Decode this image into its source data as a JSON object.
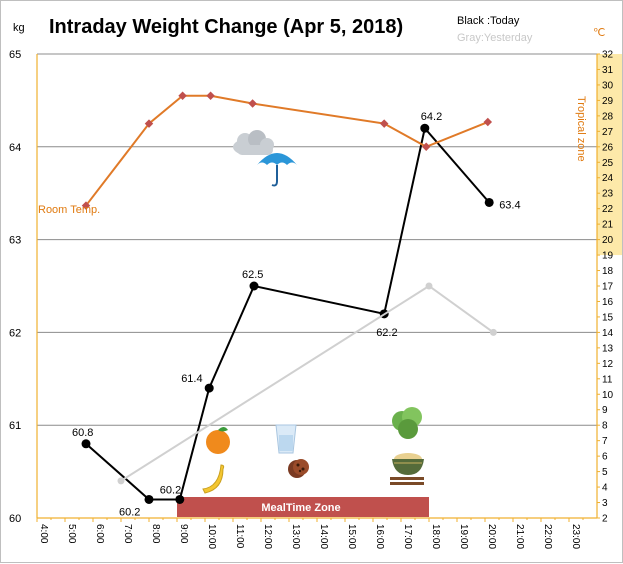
{
  "chart_data": {
    "type": "line",
    "title": "Intraday Weight Change (Apr 5, 2018)",
    "legend": {
      "today": "Black :Today",
      "yesterday": "Gray:Yesterday",
      "placement": "top-right"
    },
    "y_unit": "kg",
    "y2_unit": "℃",
    "ylim": [
      60,
      65
    ],
    "y_ticks": [
      "60",
      "61",
      "62",
      "63",
      "64",
      "65"
    ],
    "y2lim": [
      2,
      32
    ],
    "y2_ticks": [
      "2",
      "3",
      "4",
      "5",
      "6",
      "7",
      "8",
      "9",
      "10",
      "11",
      "12",
      "13",
      "14",
      "15",
      "16",
      "17",
      "18",
      "19",
      "20",
      "21",
      "22",
      "23",
      "24",
      "25",
      "26",
      "27",
      "28",
      "29",
      "30",
      "31",
      "32"
    ],
    "x_ticks": [
      "4:00",
      "5:00",
      "6:00",
      "7:00",
      "8:00",
      "9:00",
      "10:00",
      "11:00",
      "12:00",
      "13:00",
      "14:00",
      "15:00",
      "16:00",
      "17:00",
      "18:00",
      "19:00",
      "20:00",
      "21:00",
      "22:00",
      "23:00"
    ],
    "xlim": [
      4,
      24
    ],
    "grid": true,
    "series": [
      {
        "name": "Today",
        "color": "#000000",
        "x": [
          5.75,
          8.0,
          9.1,
          10.15,
          11.75,
          16.4,
          17.85,
          20.15
        ],
        "y": [
          60.8,
          60.2,
          60.2,
          61.4,
          62.5,
          62.2,
          64.2,
          63.4
        ],
        "labels": [
          "60.8",
          "60.2",
          "60.2",
          "61.4",
          "62.5",
          "62.2",
          "64.2",
          "63.4"
        ]
      },
      {
        "name": "Yesterday",
        "color": "#d0d0d0",
        "x": [
          7.0,
          18.0,
          20.3
        ],
        "y": [
          60.4,
          62.5,
          62.0
        ]
      },
      {
        "name": "Room Temp.",
        "color": "#e07a28",
        "axis": "right",
        "x": [
          5.75,
          8.0,
          9.2,
          10.2,
          11.7,
          16.4,
          17.9,
          20.1
        ],
        "y": [
          22.2,
          27.5,
          29.3,
          29.3,
          28.8,
          27.5,
          26.0,
          27.6
        ]
      }
    ],
    "annotations": {
      "room_temp": "Room Temp.",
      "tropical_zone": "Tropical zone",
      "meal_zone": "MealTime Zone",
      "tropical_zone_y2": [
        19,
        32
      ],
      "meal_zone_x": [
        9.0,
        18.0
      ]
    },
    "icons": [
      "cloud-icon",
      "umbrella-icon",
      "orange-icon",
      "banana-icon",
      "water-glass-icon",
      "cookies-icon",
      "lettuce-icon",
      "rice-bowl-icon",
      "chopsticks-icon"
    ],
    "colors": {
      "tropical_band": "#fde9a9",
      "meal_bar": "#c0504d",
      "right_axis": "#f0b030"
    }
  }
}
